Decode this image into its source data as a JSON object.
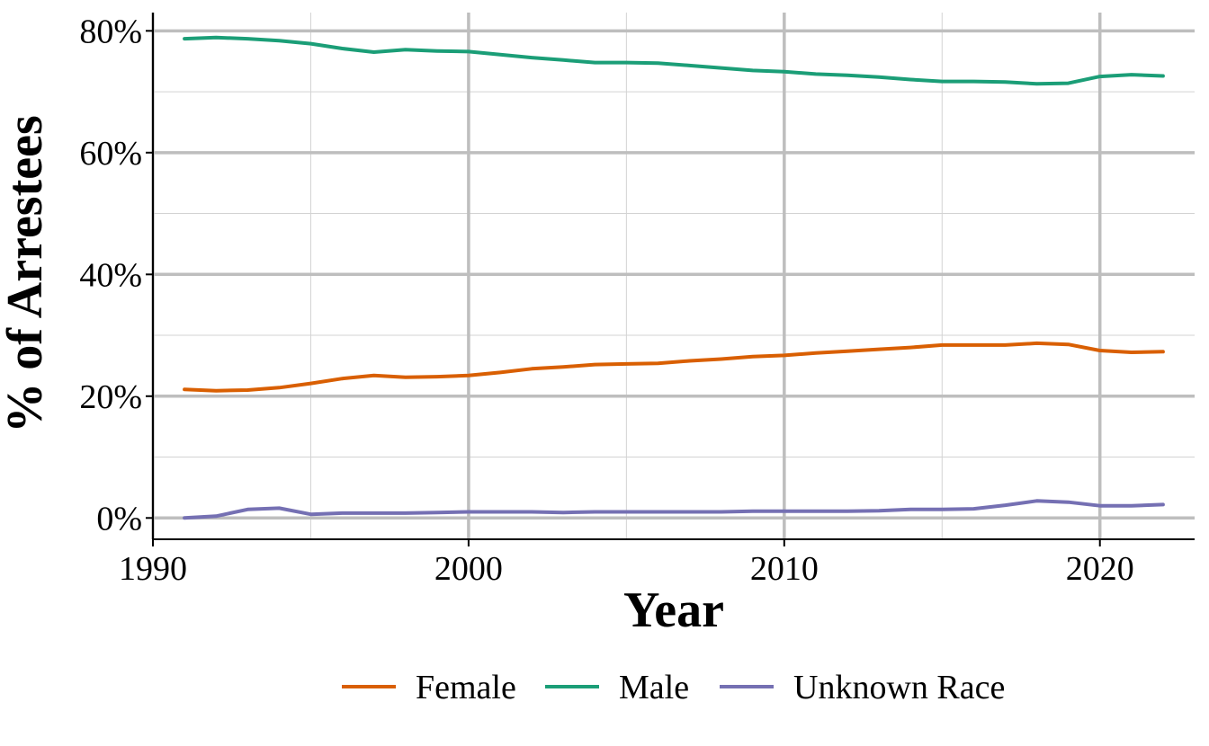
{
  "chart_data": {
    "type": "line",
    "title": "",
    "xlabel": "Year",
    "ylabel": "% of Arrestees",
    "xlim": [
      1990,
      2023
    ],
    "ylim": [
      -3.5,
      83
    ],
    "x_ticks": [
      1990,
      2000,
      2010,
      2020
    ],
    "x_tick_labels": [
      "1990",
      "2000",
      "2010",
      "2020"
    ],
    "y_ticks": [
      0,
      20,
      40,
      60,
      80
    ],
    "y_tick_labels": [
      "0%",
      "20%",
      "40%",
      "60%",
      "80%"
    ],
    "grid": true,
    "legend_position": "bottom",
    "x": [
      1991,
      1992,
      1993,
      1994,
      1995,
      1996,
      1997,
      1998,
      1999,
      2000,
      2001,
      2002,
      2003,
      2004,
      2005,
      2006,
      2007,
      2008,
      2009,
      2010,
      2011,
      2012,
      2013,
      2014,
      2015,
      2016,
      2017,
      2018,
      2019,
      2020,
      2021,
      2022
    ],
    "series": [
      {
        "name": "Female",
        "color": "#d95f02",
        "values": [
          21.1,
          20.9,
          21.0,
          21.4,
          22.1,
          22.9,
          23.4,
          23.1,
          23.2,
          23.4,
          23.9,
          24.5,
          24.8,
          25.2,
          25.3,
          25.4,
          25.8,
          26.1,
          26.5,
          26.7,
          27.1,
          27.4,
          27.7,
          28.0,
          28.4,
          28.4,
          28.4,
          28.7,
          28.5,
          27.5,
          27.2,
          27.3
        ]
      },
      {
        "name": "Male",
        "color": "#1b9e77",
        "values": [
          78.7,
          78.9,
          78.7,
          78.4,
          77.9,
          77.1,
          76.5,
          76.9,
          76.7,
          76.6,
          76.1,
          75.6,
          75.2,
          74.8,
          74.8,
          74.7,
          74.3,
          73.9,
          73.5,
          73.3,
          72.9,
          72.7,
          72.4,
          72.0,
          71.7,
          71.7,
          71.6,
          71.3,
          71.4,
          72.5,
          72.8,
          72.6
        ]
      },
      {
        "name": "Unknown Race",
        "color": "#7570b3",
        "values": [
          0.0,
          0.3,
          1.4,
          1.6,
          0.6,
          0.8,
          0.8,
          0.8,
          0.9,
          1.0,
          1.0,
          1.0,
          0.9,
          1.0,
          1.0,
          1.0,
          1.0,
          1.0,
          1.1,
          1.1,
          1.1,
          1.1,
          1.2,
          1.4,
          1.4,
          1.5,
          2.1,
          2.8,
          2.6,
          2.0,
          2.0,
          2.2
        ]
      }
    ]
  }
}
